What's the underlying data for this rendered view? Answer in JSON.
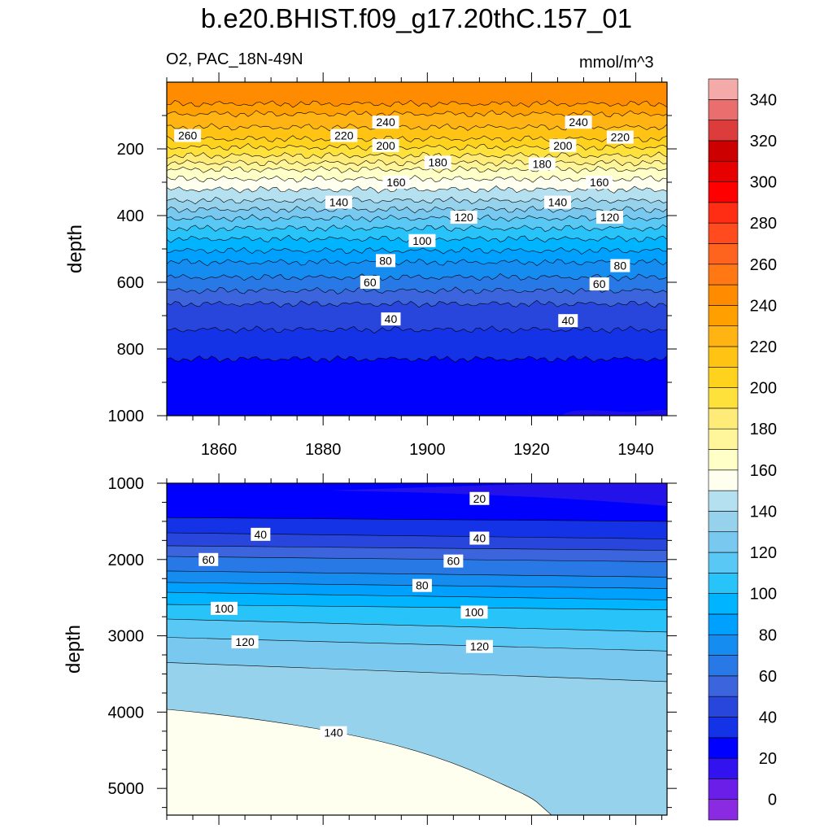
{
  "title": "b.e20.BHIST.f09_g17.20thC.157_01",
  "subtitle_left": "O2, PAC_18N-49N",
  "subtitle_right": "mmol/m^3",
  "chart_data": [
    {
      "type": "contour",
      "panel": "upper",
      "ylabel": "depth",
      "xlabel": "",
      "xlim": [
        1850,
        1946
      ],
      "ylim": [
        1000,
        0
      ],
      "x_ticks": [
        1860,
        1880,
        1900,
        1920,
        1940
      ],
      "y_ticks": [
        200,
        400,
        600,
        800,
        1000
      ],
      "contour_labels": [
        {
          "x": 1892,
          "y": 120,
          "text": "240"
        },
        {
          "x": 1929,
          "y": 120,
          "text": "240"
        },
        {
          "x": 1854,
          "y": 160,
          "text": "260"
        },
        {
          "x": 1884,
          "y": 160,
          "text": "220"
        },
        {
          "x": 1937,
          "y": 165,
          "text": "220"
        },
        {
          "x": 1892,
          "y": 190,
          "text": "200"
        },
        {
          "x": 1926,
          "y": 190,
          "text": "200"
        },
        {
          "x": 1902,
          "y": 240,
          "text": "180"
        },
        {
          "x": 1922,
          "y": 245,
          "text": "180"
        },
        {
          "x": 1894,
          "y": 300,
          "text": "160"
        },
        {
          "x": 1933,
          "y": 300,
          "text": "160"
        },
        {
          "x": 1883,
          "y": 360,
          "text": "140"
        },
        {
          "x": 1925,
          "y": 360,
          "text": "140"
        },
        {
          "x": 1907,
          "y": 405,
          "text": "120"
        },
        {
          "x": 1935,
          "y": 405,
          "text": "120"
        },
        {
          "x": 1899,
          "y": 475,
          "text": "100"
        },
        {
          "x": 1892,
          "y": 535,
          "text": "80"
        },
        {
          "x": 1937,
          "y": 550,
          "text": "80"
        },
        {
          "x": 1889,
          "y": 600,
          "text": "60"
        },
        {
          "x": 1933,
          "y": 605,
          "text": "60"
        },
        {
          "x": 1893,
          "y": 710,
          "text": "40"
        },
        {
          "x": 1927,
          "y": 715,
          "text": "40"
        }
      ],
      "levels_depth": [
        {
          "level": 240,
          "depth": 65
        },
        {
          "level": 230,
          "depth": 95
        },
        {
          "level": 220,
          "depth": 135
        },
        {
          "level": 210,
          "depth": 170
        },
        {
          "level": 200,
          "depth": 195
        },
        {
          "level": 190,
          "depth": 220
        },
        {
          "level": 180,
          "depth": 242
        },
        {
          "level": 170,
          "depth": 262
        },
        {
          "level": 160,
          "depth": 290
        },
        {
          "level": 150,
          "depth": 322
        },
        {
          "level": 140,
          "depth": 355
        },
        {
          "level": 130,
          "depth": 382
        },
        {
          "level": 120,
          "depth": 408
        },
        {
          "level": 110,
          "depth": 438
        },
        {
          "level": 100,
          "depth": 470
        },
        {
          "level": 90,
          "depth": 505
        },
        {
          "level": 80,
          "depth": 540
        },
        {
          "level": 70,
          "depth": 585
        },
        {
          "level": 60,
          "depth": 625
        },
        {
          "level": 50,
          "depth": 665
        },
        {
          "level": 40,
          "depth": 742
        },
        {
          "level": 30,
          "depth": 830
        }
      ]
    },
    {
      "type": "contour",
      "panel": "lower",
      "ylabel": "depth",
      "xlabel": "",
      "xlim": [
        1850,
        1946
      ],
      "ylim": [
        5350,
        1000
      ],
      "y_ticks": [
        1000,
        2000,
        3000,
        4000,
        5000
      ],
      "contour_labels": [
        {
          "x": 1910,
          "y": 1200,
          "text": "20"
        },
        {
          "x": 1868,
          "y": 1670,
          "text": "40"
        },
        {
          "x": 1910,
          "y": 1720,
          "text": "40"
        },
        {
          "x": 1858,
          "y": 2000,
          "text": "60"
        },
        {
          "x": 1905,
          "y": 2020,
          "text": "60"
        },
        {
          "x": 1899,
          "y": 2340,
          "text": "80"
        },
        {
          "x": 1861,
          "y": 2640,
          "text": "100"
        },
        {
          "x": 1909,
          "y": 2690,
          "text": "100"
        },
        {
          "x": 1865,
          "y": 3080,
          "text": "120"
        },
        {
          "x": 1910,
          "y": 3140,
          "text": "120"
        },
        {
          "x": 1882,
          "y": 4270,
          "text": "140"
        }
      ],
      "levels_depth": [
        {
          "level": 30,
          "depth_start": 1450,
          "depth_end": 1500
        },
        {
          "level": 40,
          "depth_start": 1650,
          "depth_end": 1730
        },
        {
          "level": 50,
          "depth_start": 1820,
          "depth_end": 1880
        },
        {
          "level": 60,
          "depth_start": 1960,
          "depth_end": 2030
        },
        {
          "level": 70,
          "depth_start": 2150,
          "depth_end": 2230
        },
        {
          "level": 80,
          "depth_start": 2300,
          "depth_end": 2380
        },
        {
          "level": 90,
          "depth_start": 2430,
          "depth_end": 2530
        },
        {
          "level": 100,
          "depth_start": 2590,
          "depth_end": 2660
        },
        {
          "level": 110,
          "depth_start": 2780,
          "depth_end": 2950
        },
        {
          "level": 120,
          "depth_start": 3020,
          "depth_end": 3200
        },
        {
          "level": 130,
          "depth_start": 3350,
          "depth_end": 3600
        }
      ]
    }
  ],
  "colorbar": {
    "tick_labels": [
      "0",
      "20",
      "40",
      "60",
      "80",
      "100",
      "120",
      "140",
      "160",
      "180",
      "200",
      "220",
      "240",
      "260",
      "280",
      "300",
      "320",
      "340"
    ],
    "colors": [
      "#8a2be2",
      "#6a1ee8",
      "#3212ee",
      "#0000ff",
      "#1432e6",
      "#2846dc",
      "#3c64dc",
      "#2878e6",
      "#148cf0",
      "#00a0ff",
      "#00b4ff",
      "#28c3f8",
      "#5ac8f5",
      "#78c8f0",
      "#96d2ec",
      "#b4e0f0",
      "#fffff0",
      "#ffffc8",
      "#fff59b",
      "#ffeb78",
      "#ffe13c",
      "#ffd21e",
      "#ffc314",
      "#ffb414",
      "#ffa000",
      "#ff8c00",
      "#ff7814",
      "#ff641e",
      "#ff4b1e",
      "#ff2d14",
      "#ff0000",
      "#e60000",
      "#cd0000",
      "#dc3c3c",
      "#eb6e6e",
      "#f5aaaa"
    ]
  }
}
